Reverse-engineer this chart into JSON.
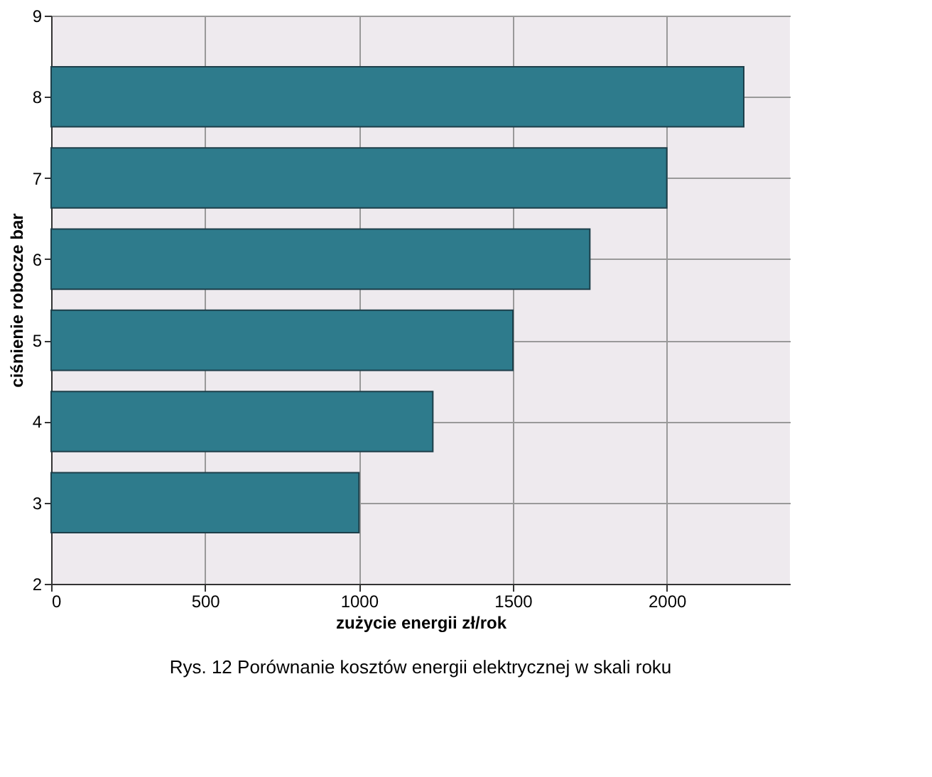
{
  "chart_data": {
    "type": "bar",
    "orientation": "horizontal",
    "x": [
      3,
      4,
      5,
      6,
      7,
      8
    ],
    "values": [
      1000,
      1240,
      1500,
      1750,
      2000,
      2250
    ],
    "color": "#2e7b8c",
    "xlabel": "zużycie energii zł/rok",
    "ylabel": "ciśnienie robocze bar",
    "xlim": [
      0,
      2400
    ],
    "xticks": [
      0,
      500,
      1000,
      1500,
      2000
    ],
    "ylim": [
      2,
      9
    ],
    "yticks": [
      2,
      3,
      4,
      5,
      6,
      7,
      8,
      9
    ],
    "grid": true,
    "annotations": [
      "Rys. 12 Porównanie kosztów energii elektrycznej w skali roku"
    ]
  }
}
